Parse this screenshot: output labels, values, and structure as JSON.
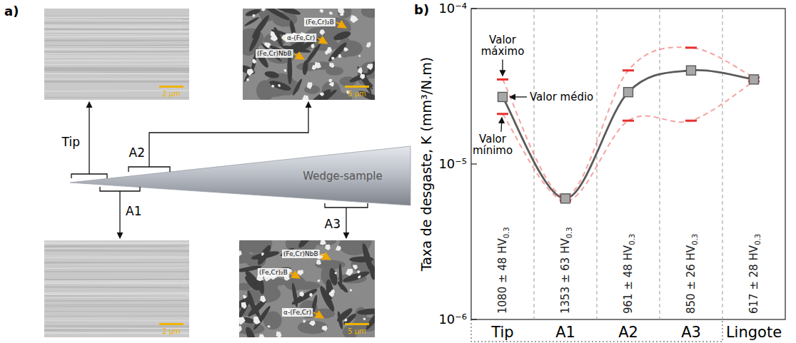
{
  "chart_data": {
    "type": "line",
    "ylabel": "Taxa de desgaste, K (mm³/N.m)",
    "categories": [
      "Tip",
      "A1",
      "A2",
      "A3",
      "Lingote"
    ],
    "series": [
      {
        "name": "Valor máximo",
        "color": "#e8302f",
        "marker": "dash",
        "line_style": "dashed",
        "values": [
          3.5e-05,
          6.2e-06,
          4e-05,
          5.6e-05,
          3.6e-05
        ]
      },
      {
        "name": "Valor médio",
        "color": "#5a5a5a",
        "marker": "square",
        "line_style": "solid",
        "values": [
          2.7e-05,
          6e-06,
          2.9e-05,
          4e-05,
          3.5e-05
        ]
      },
      {
        "name": "Valor mínimo",
        "color": "#e8302f",
        "marker": "dash",
        "line_style": "dashed",
        "values": [
          2.1e-05,
          5.8e-06,
          1.9e-05,
          1.9e-05,
          3.4e-05
        ]
      }
    ],
    "annotations": [
      "1080 ± 48 HV0.3",
      "1353 ± 63 HV0.3",
      "961 ± 48 HV0.3",
      "850 ± 26 HV0.3",
      "617 ± 28 HV0.3"
    ],
    "ylim": [
      1e-06,
      0.0001
    ],
    "yticks": [
      {
        "value": 1e-06,
        "label": "10⁻⁶"
      },
      {
        "value": 1e-05,
        "label": "10⁻⁵"
      },
      {
        "value": 0.0001,
        "label": "10⁻⁴"
      }
    ],
    "log": "y",
    "grid": false
  },
  "diagram": {
    "panel_labels": [
      "a)",
      "b)"
    ],
    "wedge_label": "Wedge-sample",
    "regions": [
      {
        "label": "Tip",
        "scale_bar": "2 μm",
        "phases": []
      },
      {
        "label": "A2",
        "scale_bar": "5 μm",
        "phases": [
          "(Fe,Cr)₂B",
          "α-(Fe,Cr)",
          "(Fe,Cr)NbB"
        ]
      },
      {
        "label": "A1",
        "scale_bar": "2 μm",
        "phases": []
      },
      {
        "label": "A3",
        "scale_bar": "5 μm",
        "phases": [
          "(Fe,Cr)NbB",
          "(Fe,Cr)₂B",
          "α-(Fe,Cr)"
        ]
      }
    ]
  }
}
